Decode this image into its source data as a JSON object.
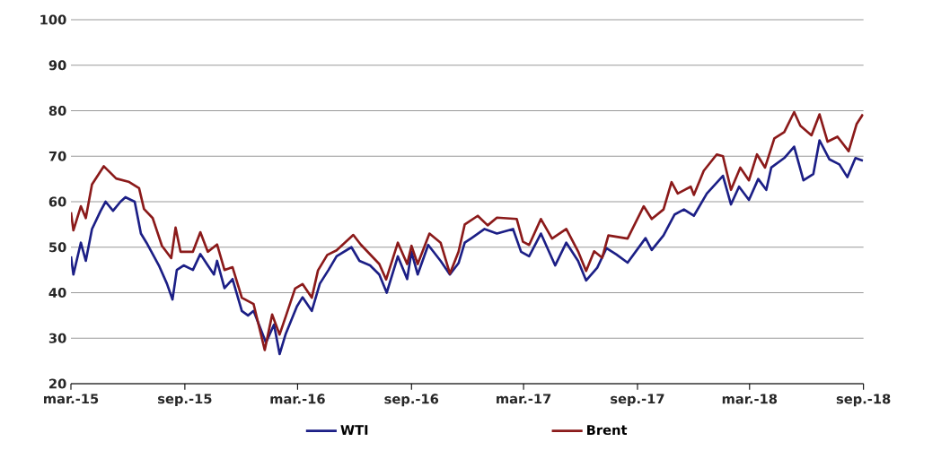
{
  "chart_data": {
    "type": "line",
    "xlim": [
      "2015-03-01",
      "2018-09-01"
    ],
    "xticks": [
      {
        "value": "2015-03-01",
        "label": "mar.-15"
      },
      {
        "value": "2015-09-01",
        "label": "sep.-15"
      },
      {
        "value": "2016-03-01",
        "label": "mar.-16"
      },
      {
        "value": "2016-09-01",
        "label": "sep.-16"
      },
      {
        "value": "2017-03-01",
        "label": "mar.-17"
      },
      {
        "value": "2017-09-01",
        "label": "sep.-17"
      },
      {
        "value": "2018-03-01",
        "label": "mar.-18"
      },
      {
        "value": "2018-09-01",
        "label": "sep.-18"
      }
    ],
    "ylim": [
      20,
      100
    ],
    "yticks": [
      20,
      30,
      40,
      50,
      60,
      70,
      80,
      90,
      100
    ],
    "grid": "y",
    "legend": "bottom",
    "marker": "none",
    "line_style": "solid",
    "series": [
      {
        "name": "WTI",
        "color": "#1c1f86",
        "x": [
          "2015-03-01",
          "2015-03-05",
          "2015-03-17",
          "2015-03-25",
          "2015-04-04",
          "2015-04-18",
          "2015-04-26",
          "2015-05-08",
          "2015-05-20",
          "2015-05-28",
          "2015-06-12",
          "2015-06-22",
          "2015-07-01",
          "2015-07-21",
          "2015-08-03",
          "2015-08-12",
          "2015-08-19",
          "2015-08-30",
          "2015-09-14",
          "2015-09-26",
          "2015-10-08",
          "2015-10-18",
          "2015-10-23",
          "2015-11-04",
          "2015-11-17",
          "2015-12-02",
          "2015-12-12",
          "2015-12-21",
          "2016-01-10",
          "2016-01-23",
          "2016-02-01",
          "2016-02-11",
          "2016-02-29",
          "2016-03-09",
          "2016-03-24",
          "2016-04-06",
          "2016-04-20",
          "2016-05-03",
          "2016-05-27",
          "2016-06-09",
          "2016-06-26",
          "2016-07-11",
          "2016-07-23",
          "2016-08-10",
          "2016-08-25",
          "2016-09-01",
          "2016-09-11",
          "2016-09-28",
          "2016-10-18",
          "2016-11-02",
          "2016-11-16",
          "2016-11-26",
          "2016-12-07",
          "2016-12-28",
          "2017-01-17",
          "2017-02-12",
          "2017-02-25",
          "2017-03-10",
          "2017-03-29",
          "2017-04-21",
          "2017-05-09",
          "2017-05-28",
          "2017-06-10",
          "2017-06-28",
          "2017-07-13",
          "2017-07-29",
          "2017-08-16",
          "2017-09-14",
          "2017-09-24",
          "2017-10-13",
          "2017-10-31",
          "2017-11-15",
          "2017-12-01",
          "2017-12-22",
          "2018-01-17",
          "2018-01-30",
          "2018-02-12",
          "2018-02-28",
          "2018-03-15",
          "2018-03-28",
          "2018-04-05",
          "2018-04-26",
          "2018-05-12",
          "2018-05-27",
          "2018-06-12",
          "2018-06-22",
          "2018-07-08",
          "2018-07-24",
          "2018-08-06",
          "2018-08-19",
          "2018-08-31"
        ],
        "values": [
          48,
          44,
          51,
          47,
          54,
          58,
          60,
          58,
          60,
          61,
          60,
          53,
          51,
          46,
          42,
          38.5,
          45,
          46,
          45,
          48.5,
          46,
          44,
          47,
          41,
          43,
          36,
          35,
          36,
          29,
          33,
          26.5,
          31,
          37,
          39,
          36,
          42,
          45,
          48,
          50,
          47,
          46,
          44,
          40,
          48,
          43,
          49,
          44,
          50.5,
          47,
          44,
          46.5,
          51,
          52,
          54,
          53,
          54,
          49,
          48,
          53,
          46,
          51,
          47,
          42.7,
          45.5,
          49.8,
          48.4,
          46.6,
          52,
          49.4,
          52.6,
          57.2,
          58.3,
          56.9,
          61.8,
          65.7,
          59.4,
          63.3,
          60.4,
          65,
          62.6,
          67.5,
          69.6,
          72.1,
          64.7,
          66.1,
          73.5,
          69.3,
          68.2,
          65.4,
          69.6,
          69
        ]
      },
      {
        "name": "Brent",
        "color": "#8b1a1a",
        "x": [
          "2015-03-01",
          "2015-03-05",
          "2015-03-17",
          "2015-03-25",
          "2015-04-04",
          "2015-04-23",
          "2015-05-13",
          "2015-06-02",
          "2015-06-19",
          "2015-06-27",
          "2015-07-11",
          "2015-07-26",
          "2015-08-10",
          "2015-08-17",
          "2015-08-25",
          "2015-09-14",
          "2015-09-26",
          "2015-10-08",
          "2015-10-23",
          "2015-11-04",
          "2015-11-17",
          "2015-12-02",
          "2015-12-21",
          "2016-01-08",
          "2016-01-20",
          "2016-02-01",
          "2016-02-11",
          "2016-02-26",
          "2016-03-09",
          "2016-03-24",
          "2016-04-03",
          "2016-04-18",
          "2016-05-03",
          "2016-05-30",
          "2016-06-11",
          "2016-07-11",
          "2016-07-22",
          "2016-08-10",
          "2016-08-25",
          "2016-09-01",
          "2016-09-11",
          "2016-09-30",
          "2016-10-18",
          "2016-11-02",
          "2016-11-16",
          "2016-11-26",
          "2016-12-17",
          "2017-01-02",
          "2017-01-17",
          "2017-02-18",
          "2017-02-28",
          "2017-03-10",
          "2017-03-29",
          "2017-04-16",
          "2017-05-09",
          "2017-05-28",
          "2017-06-10",
          "2017-06-23",
          "2017-07-06",
          "2017-07-16",
          "2017-08-16",
          "2017-09-11",
          "2017-09-24",
          "2017-10-13",
          "2017-10-26",
          "2017-11-05",
          "2017-11-26",
          "2017-12-01",
          "2017-12-17",
          "2018-01-07",
          "2018-01-17",
          "2018-01-30",
          "2018-02-14",
          "2018-02-28",
          "2018-03-13",
          "2018-03-26",
          "2018-04-10",
          "2018-04-26",
          "2018-05-12",
          "2018-05-22",
          "2018-06-09",
          "2018-06-22",
          "2018-07-05",
          "2018-07-21",
          "2018-08-08",
          "2018-08-21",
          "2018-08-31"
        ],
        "values": [
          57.7,
          53.7,
          59,
          56.4,
          63.8,
          67.8,
          65.1,
          64.4,
          63,
          58.4,
          56.4,
          50.3,
          47.6,
          54.3,
          49,
          49,
          53.3,
          49,
          50.6,
          45,
          45.6,
          38.9,
          37.5,
          27.4,
          35.2,
          30.8,
          34.8,
          40.9,
          41.9,
          38.9,
          44.9,
          48.3,
          49.3,
          52.7,
          50.6,
          46.3,
          42.9,
          51,
          46.3,
          50.3,
          46.3,
          53,
          51,
          44.2,
          49,
          55,
          56.9,
          54.8,
          56.5,
          56.2,
          51.2,
          50.5,
          56.2,
          51.9,
          54,
          49.1,
          44.8,
          49.1,
          47.7,
          52.6,
          51.9,
          59,
          56.2,
          58.3,
          64.3,
          61.8,
          63.3,
          61.5,
          66.8,
          70.4,
          70,
          62.6,
          67.5,
          64.7,
          70.4,
          67.5,
          73.9,
          75.3,
          79.7,
          76.7,
          74.6,
          79.2,
          73.2,
          74.3,
          71.1,
          77.1,
          79.2
        ]
      }
    ]
  }
}
